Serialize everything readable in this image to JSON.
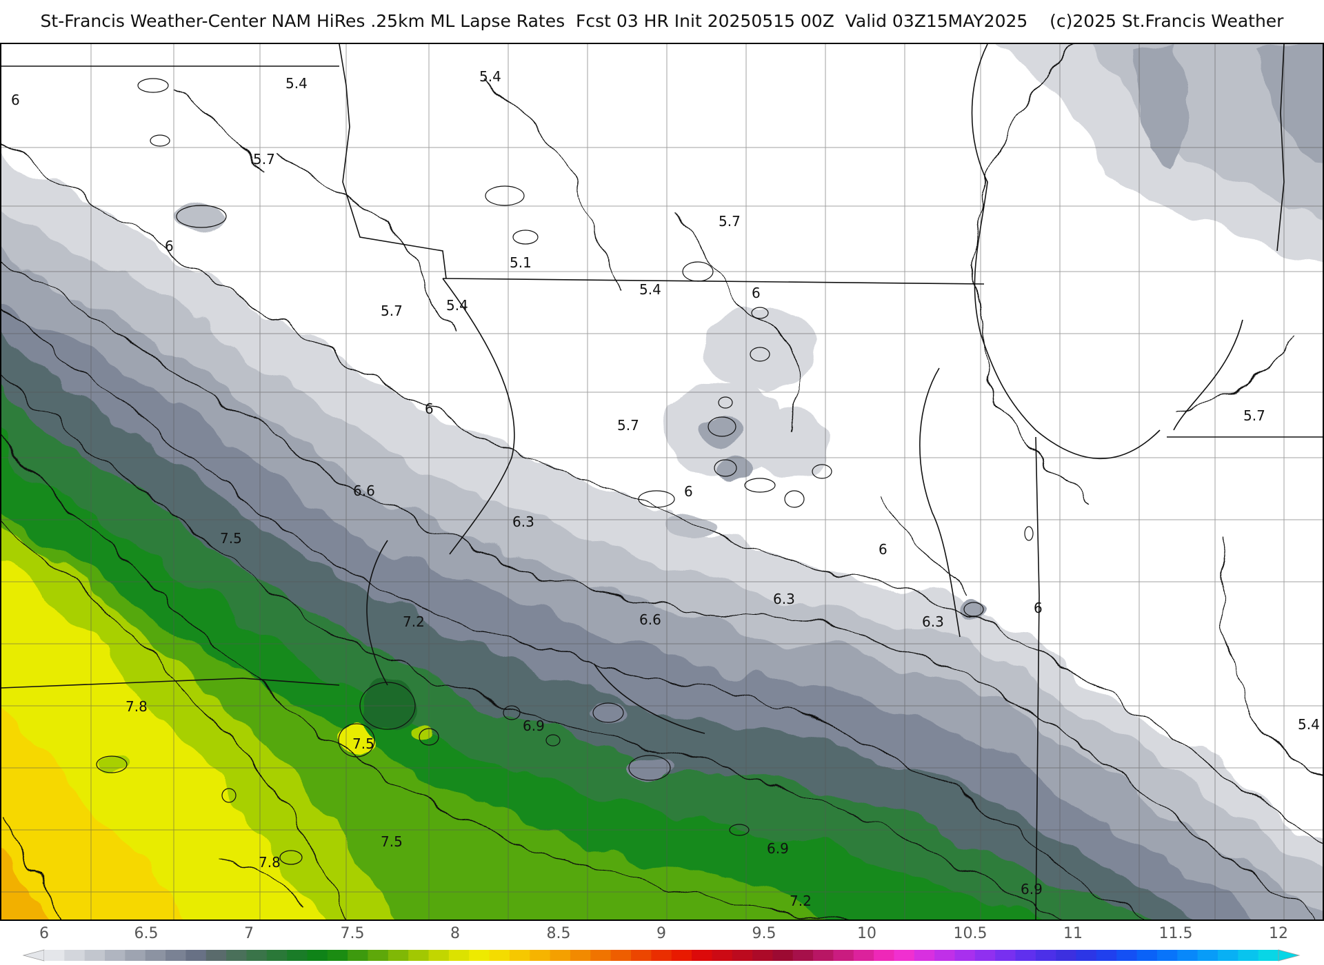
{
  "title": "St-Francis Weather-Center NAM HiRes .25km ML Lapse Rates  Fcst 03 HR Init 20250515 00Z  Valid 03Z15MAY2025    (c)2025 St.Francis Weather",
  "map": {
    "variable": "ML Lapse Rates",
    "contour_labels": [
      {
        "text": "6"
      },
      {
        "text": "5.4"
      },
      {
        "text": "5.4"
      },
      {
        "text": "5.7"
      },
      {
        "text": "6"
      },
      {
        "text": "5.7"
      },
      {
        "text": "5.1"
      },
      {
        "text": "5.4"
      },
      {
        "text": "5.7"
      },
      {
        "text": "5.4"
      },
      {
        "text": "6"
      },
      {
        "text": "6"
      },
      {
        "text": "5.7"
      },
      {
        "text": "6.6"
      },
      {
        "text": "6.3"
      },
      {
        "text": "6"
      },
      {
        "text": "7.5"
      },
      {
        "text": "6"
      },
      {
        "text": "6.3"
      },
      {
        "text": "6"
      },
      {
        "text": "7.2"
      },
      {
        "text": "6.6"
      },
      {
        "text": "6.3"
      },
      {
        "text": "7.8"
      },
      {
        "text": "6.9"
      },
      {
        "text": "7.5"
      },
      {
        "text": "7.5"
      },
      {
        "text": "6.9"
      },
      {
        "text": "7.8"
      },
      {
        "text": "7.2"
      },
      {
        "text": "6.9"
      },
      {
        "text": "5.7"
      },
      {
        "text": "5.4"
      }
    ],
    "band_colors": [
      "#d7d9de",
      "#bcc0c8",
      "#9ea4b0",
      "#7f8798",
      "#556b6e",
      "#2e7d3a",
      "#178a1e",
      "#54a80c",
      "#a8d000",
      "#e8ec00",
      "#f6d800",
      "#f2b000"
    ]
  },
  "colorbar": {
    "ticks": [
      "6",
      "6.5",
      "7",
      "7.5",
      "8",
      "8.5",
      "9",
      "9.5",
      "10",
      "10.5",
      "11",
      "11.5",
      "12"
    ],
    "colors": [
      "#e4e6ea",
      "#d3d6dc",
      "#c2c6ce",
      "#b0b5c0",
      "#9ea4b1",
      "#8c93a2",
      "#7a8294",
      "#687185",
      "#5a6b6c",
      "#4a705a",
      "#3a7449",
      "#2a7838",
      "#1a7c28",
      "#0f8318",
      "#1b8c12",
      "#3d9a0e",
      "#5ea80a",
      "#80b806",
      "#a2c802",
      "#c2d600",
      "#dce200",
      "#eeea00",
      "#f4dc00",
      "#f6c800",
      "#f6b400",
      "#f4a000",
      "#f28a00",
      "#f07400",
      "#ee5e00",
      "#ec4600",
      "#ea2e00",
      "#e81a00",
      "#dc0a0a",
      "#cc0a14",
      "#bc0a1e",
      "#ac0a28",
      "#9c0a32",
      "#a6104a",
      "#b81664",
      "#ca1c80",
      "#dc229c",
      "#ee28b8",
      "#f030d0",
      "#d830e0",
      "#c030e8",
      "#a830ee",
      "#9030f0",
      "#7830f0",
      "#6030ee",
      "#4c30e8",
      "#3c30e0",
      "#2c36e6",
      "#2040ee",
      "#1450f4",
      "#0a62f8",
      "#0874fa",
      "#0888fa",
      "#089cf8",
      "#08b0f4",
      "#08c4ee",
      "#08d6e6"
    ]
  }
}
